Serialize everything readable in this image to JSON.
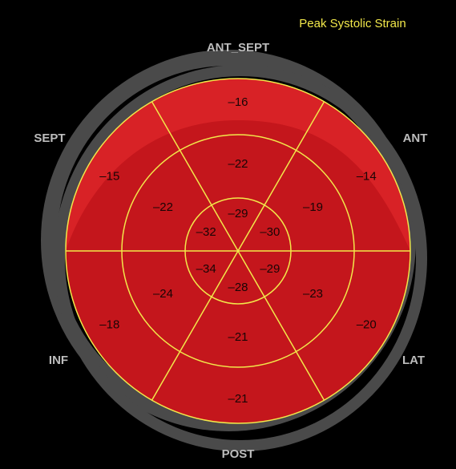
{
  "chart_data": {
    "type": "bullseye",
    "title": "Peak Systolic Strain",
    "walls": [
      "ANT_SEPT",
      "ANT",
      "LAT",
      "POST",
      "INF",
      "SEPT"
    ],
    "rings": [
      {
        "values": [
          -16,
          -14,
          -20,
          -21,
          -18,
          -15
        ],
        "value_labels": [
          "–16",
          "–14",
          "–20",
          "–21",
          "–18",
          "–15"
        ]
      },
      {
        "values": [
          -22,
          -19,
          -23,
          -21,
          -24,
          -22
        ],
        "value_labels": [
          "–22",
          "–19",
          "–23",
          "–21",
          "–24",
          "–22"
        ]
      },
      {
        "values": [
          -29,
          -30,
          -29,
          -28,
          -34,
          -32
        ],
        "value_labels": [
          "–29",
          "–30",
          "–29",
          "–28",
          "–34",
          "–32"
        ]
      }
    ],
    "color": "#c4161c",
    "line_color": "#f2e84a"
  }
}
